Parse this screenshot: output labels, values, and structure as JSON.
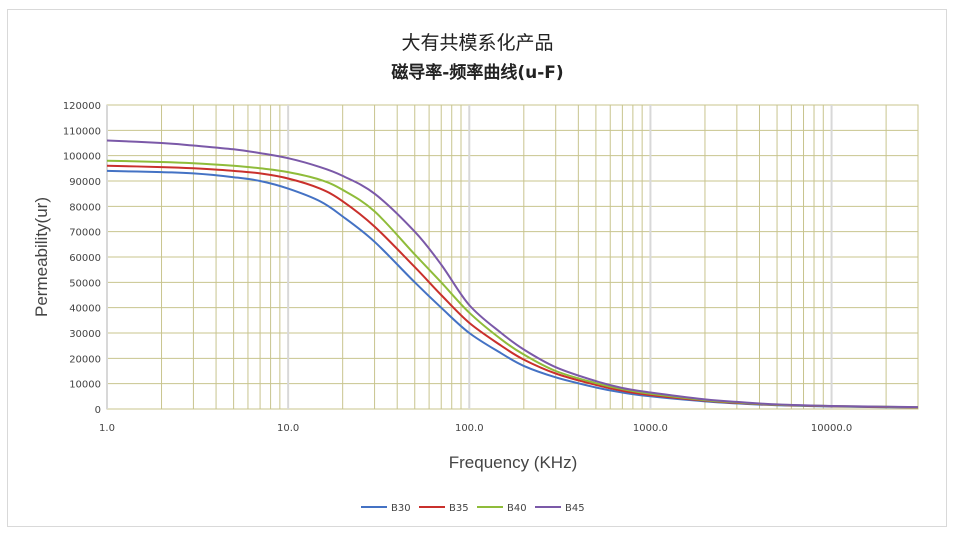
{
  "chart_data": {
    "type": "line",
    "title": "大有共模系化产品",
    "subtitle": "磁导率-频率曲线(u-F)",
    "xlabel": "Frequency (KHz)",
    "ylabel": "Permeability(ur)",
    "x_scale": "log",
    "xlim": [
      1,
      30000
    ],
    "ylim": [
      0,
      120000
    ],
    "x_ticks": [
      "1.0",
      "10.0",
      "100.0",
      "1000.0",
      "10000.0"
    ],
    "y_ticks": [
      "0",
      "10000",
      "20000",
      "30000",
      "40000",
      "50000",
      "60000",
      "70000",
      "80000",
      "90000",
      "100000",
      "110000",
      "120000"
    ],
    "grid": true,
    "legend_position": "bottom",
    "x": [
      1,
      2,
      3,
      5,
      7,
      10,
      15,
      20,
      30,
      50,
      70,
      100,
      150,
      200,
      300,
      500,
      700,
      1000,
      2000,
      3000,
      5000,
      10000,
      20000,
      30000
    ],
    "series": [
      {
        "name": "B30",
        "color": "#4472c4",
        "values": [
          94000,
          93500,
          93000,
          91500,
          90000,
          87000,
          82000,
          76000,
          66000,
          50000,
          40000,
          30000,
          22000,
          17000,
          12500,
          8500,
          6500,
          5000,
          3000,
          2200,
          1500,
          1000,
          700,
          600
        ]
      },
      {
        "name": "B35",
        "color": "#c9302c",
        "values": [
          96000,
          95500,
          95000,
          94000,
          93000,
          91000,
          87000,
          82000,
          72000,
          56000,
          45000,
          34000,
          25000,
          19500,
          14000,
          9500,
          7200,
          5500,
          3300,
          2400,
          1600,
          1100,
          800,
          650
        ]
      },
      {
        "name": "B40",
        "color": "#8fbc3a",
        "values": [
          98000,
          97500,
          97000,
          96000,
          95000,
          93500,
          90500,
          86500,
          78000,
          61000,
          50000,
          38000,
          27500,
          21500,
          15000,
          10200,
          7800,
          6000,
          3500,
          2600,
          1700,
          1150,
          850,
          700
        ]
      },
      {
        "name": "B45",
        "color": "#7b59a8",
        "values": [
          106000,
          105000,
          104000,
          102500,
          101000,
          99000,
          95500,
          92000,
          85000,
          70000,
          57000,
          41000,
          30000,
          23500,
          16500,
          11000,
          8300,
          6500,
          3800,
          2800,
          1800,
          1200,
          900,
          750
        ]
      }
    ]
  }
}
